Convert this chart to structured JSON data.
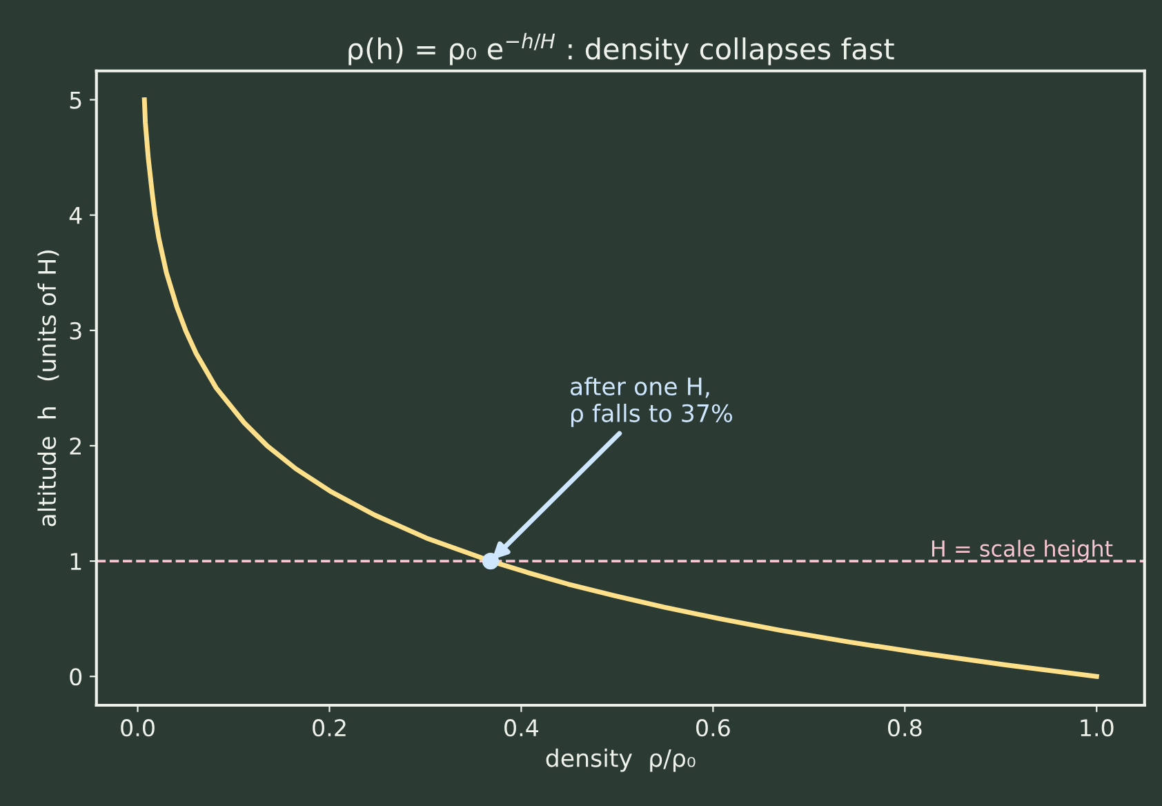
{
  "chart_data": {
    "type": "line",
    "title": "ρ(h) = ρ₀ e$^{−h/H}$ : density collapses fast",
    "xlabel": "density  ρ/ρ₀",
    "ylabel": "altitude  h   (units of H)",
    "series": [
      {
        "color": "#ffe08a",
        "x": [
          1.0,
          0.905,
          0.819,
          0.741,
          0.67,
          0.607,
          0.549,
          0.497,
          0.449,
          0.407,
          0.368,
          0.301,
          0.247,
          0.202,
          0.165,
          0.135,
          0.111,
          0.082,
          0.061,
          0.05,
          0.041,
          0.03,
          0.022,
          0.018,
          0.015,
          0.011,
          0.008,
          0.007
        ],
        "values": [
          0,
          0.1,
          0.2,
          0.3,
          0.4,
          0.5,
          0.6,
          0.7,
          0.8,
          0.9,
          1,
          1.2,
          1.4,
          1.6,
          1.8,
          2,
          2.2,
          2.5,
          2.8,
          3,
          3.2,
          3.5,
          3.8,
          4,
          4.2,
          4.5,
          4.8,
          5
        ]
      },
      {
        "type": "scatter",
        "color": "#cfe6ff",
        "x": [
          0.368
        ],
        "values": [
          1
        ]
      }
    ],
    "annotations": [
      {
        "text": "after one H,\nρ falls to 37%",
        "x": 0.368,
        "y": 1
      }
    ],
    "ref_lines": [
      {
        "axis": "y",
        "value": 1,
        "label": "H = scale height",
        "color": "#f7c6d0",
        "line_style": "dashed"
      }
    ],
    "xlim": [
      -0.043,
      1.05
    ],
    "ylim": [
      -0.25,
      5.25
    ],
    "xticks": [
      {
        "value": 0,
        "label": "0.0"
      },
      0.2,
      0.4,
      0.6,
      0.8,
      {
        "value": 1,
        "label": "1.0"
      }
    ],
    "yticks": [
      0,
      1,
      2,
      3,
      4,
      5
    ],
    "grid": false,
    "legend": false
  }
}
